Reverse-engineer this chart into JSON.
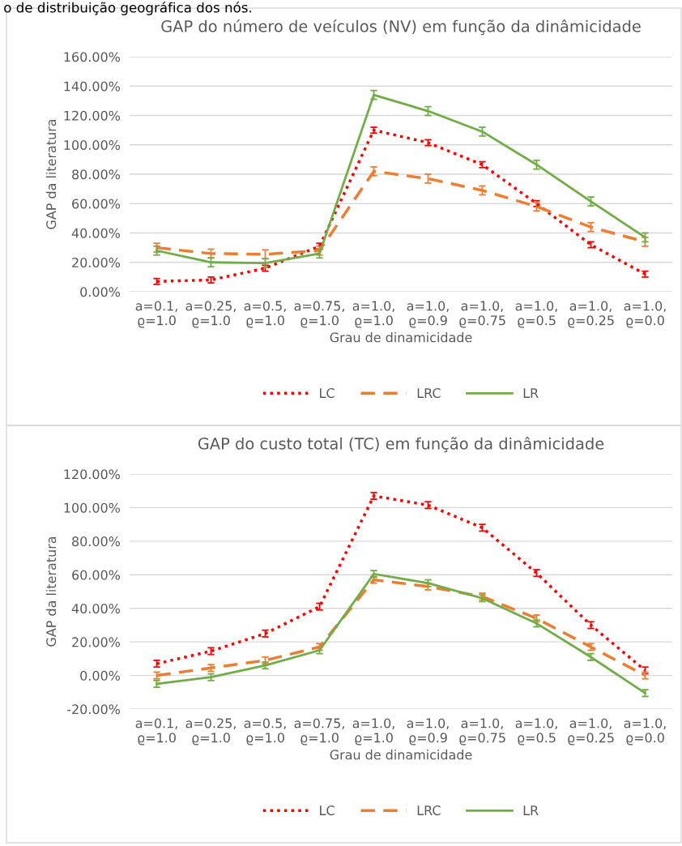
{
  "chart_data": [
    {
      "type": "line",
      "title": "GAP do número de veículos (NV) em função da dinâmicidade",
      "xlabel": "Grau de dinamicidade",
      "ylabel": "GAP da literatura",
      "annotations": [
        "o de distribuição geográfica dos nós."
      ],
      "categories": [
        "a=0.1,\nϱ=1.0",
        "a=0.25,\nϱ=1.0",
        "a=0.5,\nϱ=1.0",
        "a=0.75,\nϱ=1.0",
        "a=1.0,\nϱ=1.0",
        "a=1.0,\nϱ=0.9",
        "a=1.0,\nϱ=0.75",
        "a=1.0,\nϱ=0.5",
        "a=1.0,\nϱ=0.25",
        "a=1.0,\nϱ=0.0"
      ],
      "series": [
        {
          "name": "LC",
          "color": "#ff0000",
          "line_style": "dotted",
          "values": [
            7,
            8,
            16,
            31,
            110,
            101.5,
            86.5,
            60,
            32,
            12
          ],
          "errors": [
            2,
            2,
            2,
            2,
            2,
            2,
            2,
            2,
            2,
            2
          ]
        },
        {
          "name": "LRC",
          "color": "#ed7d31",
          "line_style": "dashed",
          "values": [
            30,
            26,
            25.5,
            28,
            82,
            77,
            69,
            58,
            44,
            34
          ],
          "errors": [
            3,
            3,
            3,
            3,
            3,
            3,
            3,
            3,
            3,
            3
          ]
        },
        {
          "name": "LR",
          "color": "#70ad47",
          "line_style": "solid",
          "values": [
            28,
            20,
            19.5,
            26,
            134,
            123,
            109,
            86.5,
            61.5,
            37
          ],
          "errors": [
            3,
            3,
            3,
            3,
            3,
            3,
            3,
            3,
            3,
            3
          ]
        }
      ],
      "ylim": [
        0,
        160
      ],
      "yticks": [
        {
          "value": 0,
          "label": "0.00%"
        },
        {
          "value": 20,
          "label": "20.00%"
        },
        {
          "value": 40,
          "label": "40.00%"
        },
        {
          "value": 60,
          "label": "60.00%"
        },
        {
          "value": 80,
          "label": "80.00%"
        },
        {
          "value": 100,
          "label": "100.00%"
        },
        {
          "value": 120,
          "label": "120.00%"
        },
        {
          "value": 140,
          "label": "140.00%"
        },
        {
          "value": 160,
          "label": "160.00%"
        }
      ],
      "grid": "y",
      "legend": "bottom",
      "marker": "none"
    },
    {
      "type": "line",
      "title": "GAP do custo total (TC) em função da dinâmicidade",
      "xlabel": "Grau de dinamicidade",
      "ylabel": "GAP da literatura",
      "categories": [
        "a=0.1,\nϱ=1.0",
        "a=0.25,\nϱ=1.0",
        "a=0.5,\nϱ=1.0",
        "a=0.75,\nϱ=1.0",
        "a=1.0,\nϱ=1.0",
        "a=1.0,\nϱ=0.9",
        "a=1.0,\nϱ=0.75",
        "a=1.0,\nϱ=0.5",
        "a=1.0,\nϱ=0.25",
        "a=1.0,\nϱ=0.0"
      ],
      "series": [
        {
          "name": "LC",
          "color": "#ff0000",
          "line_style": "dotted",
          "values": [
            7,
            14.5,
            25,
            41,
            107,
            101.5,
            88,
            61,
            30,
            3
          ],
          "errors": [
            2,
            2,
            2,
            2,
            2,
            2,
            2,
            2,
            2,
            2
          ]
        },
        {
          "name": "LRC",
          "color": "#ed7d31",
          "line_style": "dashed",
          "values": [
            0,
            4.5,
            9,
            17,
            57,
            53,
            47,
            34,
            17,
            0
          ],
          "errors": [
            2,
            2,
            2,
            2,
            2,
            2,
            2,
            2,
            2,
            2
          ]
        },
        {
          "name": "LR",
          "color": "#70ad47",
          "line_style": "solid",
          "values": [
            -5,
            -1,
            6,
            15,
            60.5,
            55,
            46,
            31,
            11,
            -10.5
          ],
          "errors": [
            2,
            2,
            2,
            2,
            2,
            2,
            2,
            2,
            2,
            2
          ]
        }
      ],
      "ylim": [
        -20,
        120
      ],
      "yticks": [
        {
          "value": -20,
          "label": "-20.00%"
        },
        {
          "value": 0,
          "label": "0.00%"
        },
        {
          "value": 20,
          "label": "20.00%"
        },
        {
          "value": 40,
          "label": "40.00%"
        },
        {
          "value": 60,
          "label": "60.00%"
        },
        {
          "value": 80,
          "label": "80.00%"
        },
        {
          "value": 100,
          "label": "100.00%"
        },
        {
          "value": 120,
          "label": "120.00%"
        }
      ],
      "grid": "y",
      "legend": "bottom",
      "marker": "none"
    }
  ]
}
